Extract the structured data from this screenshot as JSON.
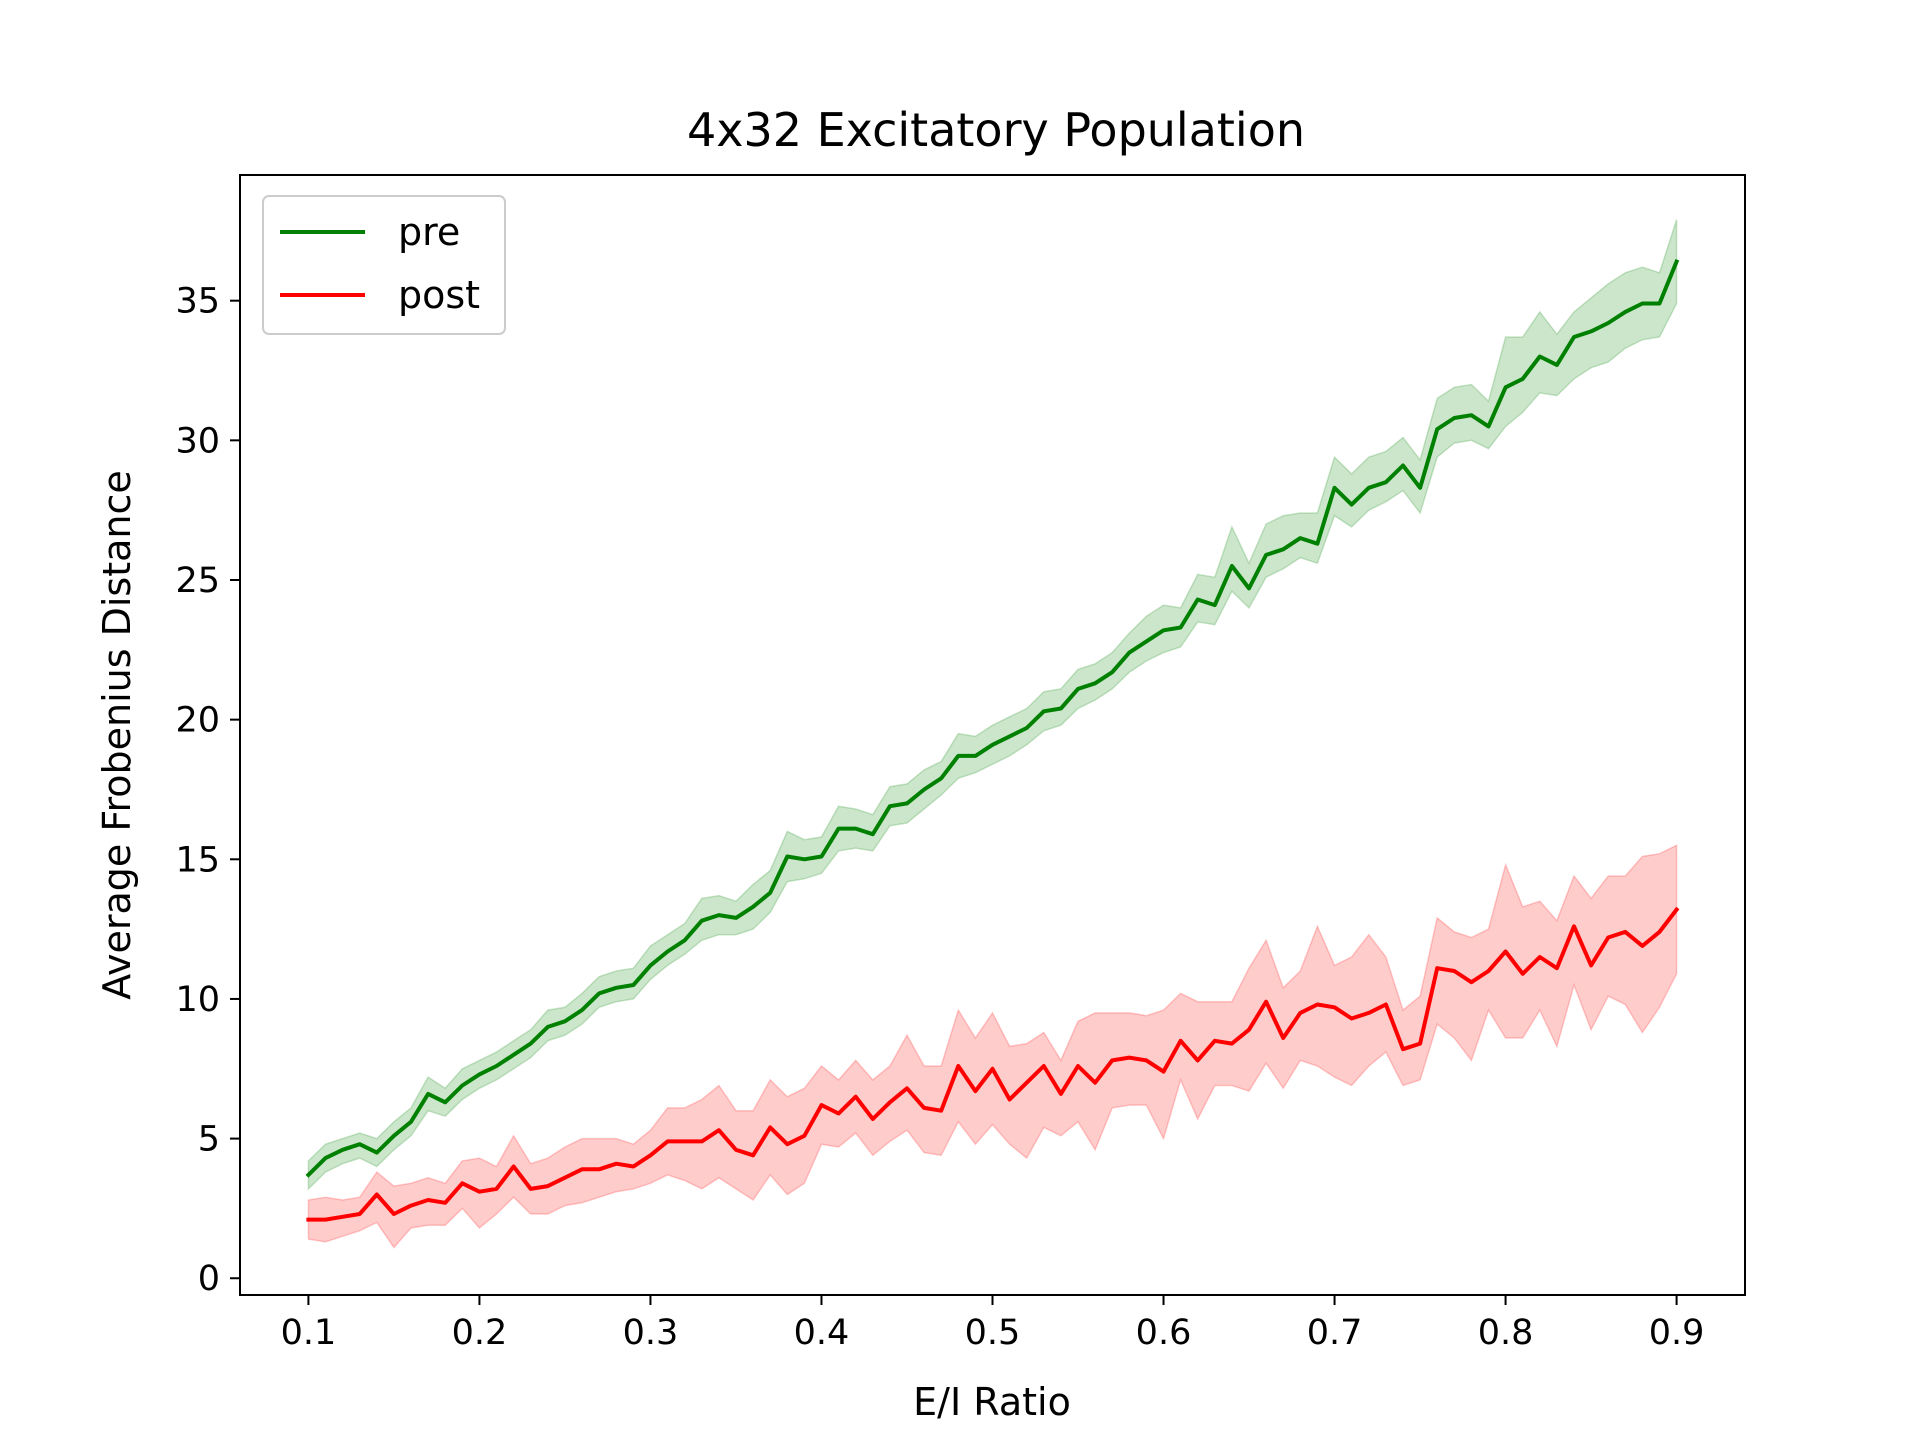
{
  "chart_data": {
    "type": "line",
    "title": "4x32 Excitatory Population",
    "xlabel": "E/I Ratio",
    "ylabel": "Average Frobenius Distance",
    "xlim": [
      0.06,
      0.94
    ],
    "ylim": [
      -0.6,
      39.5
    ],
    "xticks": [
      0.1,
      0.2,
      0.3,
      0.4,
      0.5,
      0.6,
      0.7,
      0.8,
      0.9
    ],
    "xtick_labels": [
      "0.1",
      "0.2",
      "0.3",
      "0.4",
      "0.5",
      "0.6",
      "0.7",
      "0.8",
      "0.9"
    ],
    "yticks": [
      0,
      5,
      10,
      15,
      20,
      25,
      30,
      35
    ],
    "ytick_labels": [
      "0",
      "5",
      "10",
      "15",
      "20",
      "25",
      "30",
      "35"
    ],
    "grid": false,
    "legend_position": "top-left",
    "x": [
      0.1,
      0.11,
      0.12,
      0.13,
      0.14,
      0.15,
      0.16,
      0.17,
      0.18,
      0.19,
      0.2,
      0.21,
      0.22,
      0.23,
      0.24,
      0.25,
      0.26,
      0.27,
      0.28,
      0.29,
      0.3,
      0.31,
      0.32,
      0.33,
      0.34,
      0.35,
      0.36,
      0.37,
      0.38,
      0.39,
      0.4,
      0.41,
      0.42,
      0.43,
      0.44,
      0.45,
      0.46,
      0.47,
      0.48,
      0.49,
      0.5,
      0.51,
      0.52,
      0.53,
      0.54,
      0.55,
      0.56,
      0.57,
      0.58,
      0.59,
      0.6,
      0.61,
      0.62,
      0.63,
      0.64,
      0.65,
      0.66,
      0.67,
      0.68,
      0.69,
      0.7,
      0.71,
      0.72,
      0.73,
      0.74,
      0.75,
      0.76,
      0.77,
      0.78,
      0.79,
      0.8,
      0.81,
      0.82,
      0.83,
      0.84,
      0.85,
      0.86,
      0.87,
      0.88,
      0.89,
      0.9
    ],
    "series": [
      {
        "name": "pre",
        "color": "#008000",
        "band_color": "#008000",
        "band_opacity": 0.2,
        "values": [
          3.7,
          4.3,
          4.6,
          4.8,
          4.5,
          5.1,
          5.6,
          6.6,
          6.3,
          6.9,
          7.3,
          7.6,
          8.0,
          8.4,
          9.0,
          9.2,
          9.6,
          10.2,
          10.4,
          10.5,
          11.2,
          11.7,
          12.1,
          12.8,
          13.0,
          12.9,
          13.3,
          13.8,
          15.1,
          15.0,
          15.1,
          16.1,
          16.1,
          15.9,
          16.9,
          17.0,
          17.5,
          17.9,
          18.7,
          18.7,
          19.1,
          19.4,
          19.7,
          20.3,
          20.4,
          21.1,
          21.3,
          21.7,
          22.4,
          22.8,
          23.2,
          23.3,
          24.3,
          24.1,
          25.5,
          24.7,
          25.9,
          26.1,
          26.5,
          26.3,
          28.3,
          27.7,
          28.3,
          28.5,
          29.1,
          28.3,
          30.4,
          30.8,
          30.9,
          30.5,
          31.9,
          32.2,
          33.0,
          32.7,
          33.7,
          33.9,
          34.2,
          34.6,
          34.9,
          34.9,
          36.4
        ],
        "lower": [
          3.2,
          3.8,
          4.1,
          4.3,
          4.0,
          4.6,
          5.1,
          6.0,
          5.8,
          6.4,
          6.8,
          7.1,
          7.5,
          7.9,
          8.5,
          8.7,
          9.1,
          9.7,
          9.9,
          10.0,
          10.7,
          11.2,
          11.6,
          12.1,
          12.3,
          12.3,
          12.5,
          13.1,
          14.2,
          14.3,
          14.5,
          15.3,
          15.4,
          15.3,
          16.2,
          16.3,
          16.8,
          17.3,
          17.9,
          18.1,
          18.4,
          18.7,
          19.1,
          19.6,
          19.8,
          20.4,
          20.7,
          21.1,
          21.7,
          22.1,
          22.4,
          22.6,
          23.5,
          23.4,
          24.6,
          24.0,
          25.1,
          25.4,
          25.8,
          25.6,
          27.3,
          26.9,
          27.5,
          27.8,
          28.2,
          27.4,
          29.4,
          29.9,
          30.0,
          29.7,
          30.5,
          31.0,
          31.7,
          31.6,
          32.2,
          32.6,
          32.8,
          33.3,
          33.6,
          33.7,
          34.9
        ],
        "upper": [
          4.2,
          4.8,
          5.0,
          5.2,
          5.0,
          5.6,
          6.1,
          7.2,
          6.8,
          7.5,
          7.8,
          8.1,
          8.5,
          8.9,
          9.6,
          9.7,
          10.2,
          10.8,
          11.0,
          11.1,
          11.9,
          12.3,
          12.7,
          13.6,
          13.7,
          13.5,
          14.1,
          14.6,
          16.0,
          15.7,
          15.8,
          16.9,
          16.8,
          16.6,
          17.6,
          17.7,
          18.2,
          18.5,
          19.5,
          19.4,
          19.8,
          20.1,
          20.4,
          21.0,
          21.1,
          21.8,
          22.0,
          22.4,
          23.1,
          23.7,
          24.1,
          24.0,
          25.2,
          25.1,
          26.9,
          25.6,
          27.0,
          27.3,
          27.4,
          27.4,
          29.4,
          28.8,
          29.4,
          29.6,
          30.1,
          29.3,
          31.5,
          31.9,
          32.0,
          31.4,
          33.7,
          33.7,
          34.6,
          33.8,
          34.6,
          35.1,
          35.6,
          36.0,
          36.2,
          36.0,
          37.9
        ]
      },
      {
        "name": "post",
        "color": "#ff0000",
        "band_color": "#ff0000",
        "band_opacity": 0.2,
        "values": [
          2.1,
          2.1,
          2.2,
          2.3,
          3.0,
          2.3,
          2.6,
          2.8,
          2.7,
          3.4,
          3.1,
          3.2,
          4.0,
          3.2,
          3.3,
          3.6,
          3.9,
          3.9,
          4.1,
          4.0,
          4.4,
          4.9,
          4.9,
          4.9,
          5.3,
          4.6,
          4.4,
          5.4,
          4.8,
          5.1,
          6.2,
          5.9,
          6.5,
          5.7,
          6.3,
          6.8,
          6.1,
          6.0,
          7.6,
          6.7,
          7.5,
          6.4,
          7.0,
          7.6,
          6.6,
          7.6,
          7.0,
          7.8,
          7.9,
          7.8,
          7.4,
          8.5,
          7.8,
          8.5,
          8.4,
          8.9,
          9.9,
          8.6,
          9.5,
          9.8,
          9.7,
          9.3,
          9.5,
          9.8,
          8.2,
          8.4,
          11.1,
          11.0,
          10.6,
          11.0,
          11.7,
          10.9,
          11.5,
          11.1,
          12.6,
          11.2,
          12.2,
          12.4,
          11.9,
          12.4,
          13.2
        ],
        "lower": [
          1.4,
          1.3,
          1.5,
          1.7,
          2.0,
          1.1,
          1.8,
          1.9,
          1.9,
          2.5,
          1.8,
          2.3,
          2.9,
          2.3,
          2.3,
          2.6,
          2.7,
          2.9,
          3.1,
          3.2,
          3.4,
          3.7,
          3.5,
          3.2,
          3.6,
          3.2,
          2.8,
          3.7,
          3.0,
          3.4,
          4.8,
          4.7,
          5.2,
          4.4,
          4.9,
          5.3,
          4.5,
          4.4,
          5.6,
          4.8,
          5.5,
          4.8,
          4.3,
          5.4,
          5.1,
          5.6,
          4.6,
          6.1,
          6.2,
          6.2,
          5.0,
          7.1,
          5.7,
          6.9,
          6.9,
          6.7,
          7.7,
          6.8,
          7.8,
          7.6,
          7.2,
          6.9,
          7.6,
          8.1,
          6.9,
          7.1,
          9.1,
          8.6,
          7.8,
          9.6,
          8.6,
          8.6,
          9.6,
          8.3,
          10.5,
          8.9,
          10.1,
          9.8,
          8.8,
          9.7,
          10.9
        ],
        "upper": [
          2.8,
          2.9,
          2.8,
          2.9,
          3.8,
          3.3,
          3.4,
          3.6,
          3.4,
          4.2,
          4.3,
          4.0,
          5.1,
          4.1,
          4.3,
          4.7,
          5.0,
          5.0,
          5.0,
          4.8,
          5.3,
          6.1,
          6.1,
          6.4,
          6.9,
          6.0,
          6.0,
          7.1,
          6.5,
          6.8,
          7.6,
          7.1,
          7.8,
          7.1,
          7.6,
          8.7,
          7.6,
          7.6,
          9.6,
          8.6,
          9.5,
          8.3,
          8.4,
          8.8,
          7.8,
          9.2,
          9.5,
          9.5,
          9.5,
          9.4,
          9.6,
          10.2,
          9.9,
          9.9,
          9.9,
          11.1,
          12.1,
          10.4,
          11.0,
          12.6,
          11.2,
          11.5,
          12.3,
          11.5,
          9.6,
          10.1,
          12.9,
          12.4,
          12.2,
          12.5,
          14.8,
          13.3,
          13.5,
          12.8,
          14.4,
          13.6,
          14.4,
          14.4,
          15.1,
          15.2,
          15.5
        ]
      }
    ]
  }
}
